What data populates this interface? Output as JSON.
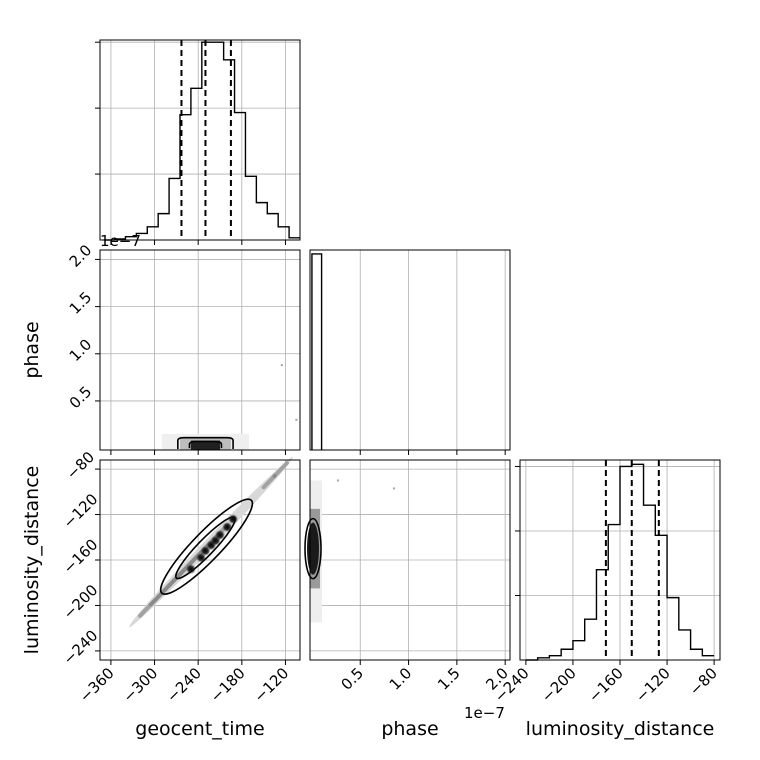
{
  "chart_data": {
    "type": "corner",
    "parameters": [
      "geocent_time",
      "phase",
      "luminosity_distance"
    ],
    "offset_label": "1e−7",
    "grid": true,
    "quantile_lines": "dashed",
    "panels": [
      {
        "id": "hist-geocent_time",
        "type": "histogram",
        "xlim": [
          -375,
          -100
        ],
        "bin_edges": [
          -370,
          -355,
          -340,
          -325,
          -310,
          -295,
          -280,
          -265,
          -250,
          -235,
          -220,
          -205,
          -190,
          -175,
          -160,
          -145,
          -130,
          -115,
          -100
        ],
        "counts": [
          0,
          0.5,
          1.5,
          3,
          6,
          12,
          28,
          57,
          69,
          90,
          90,
          82,
          58,
          29,
          17,
          12,
          6,
          1
        ],
        "ylim": [
          0,
          91
        ],
        "y_ticks": [
          30,
          60,
          90
        ],
        "quantiles": [
          -263,
          -230,
          -195
        ]
      },
      {
        "id": "hist-phase",
        "type": "histogram",
        "xlim": [
          -0.02,
          2.05
        ],
        "bin_edges": [
          0,
          0.1
        ],
        "counts": [
          1
        ],
        "ylim": [
          0,
          1.02
        ],
        "y_ticks": [],
        "quantiles": []
      },
      {
        "id": "hist-luminosity_distance",
        "type": "histogram",
        "xlim": [
          -245,
          -75
        ],
        "bin_edges": [
          -240,
          -230,
          -220,
          -210,
          -200,
          -190,
          -180,
          -170,
          -160,
          -150,
          -140,
          -130,
          -120,
          -110,
          -100,
          -90,
          -80
        ],
        "counts": [
          0,
          1,
          2,
          5,
          9,
          19,
          42,
          63,
          90,
          91,
          72,
          58,
          29,
          14,
          5,
          2
        ],
        "ylim": [
          0,
          93
        ],
        "y_ticks": [
          30,
          60,
          90
        ],
        "quantiles": [
          -172,
          -150,
          -127
        ]
      },
      {
        "id": "scatter-phase-vs-geocent_time",
        "type": "density",
        "x": "geocent_time",
        "y": "phase",
        "xlim": [
          -375,
          -100
        ],
        "ylim": [
          -0.02,
          2.1
        ],
        "x_ticks": [
          -360,
          -300,
          -240,
          -180,
          -120
        ],
        "y_ticks": [
          0.5,
          1.0,
          1.5,
          2.0
        ],
        "y_tick_labels": [
          "0.5",
          "1.0",
          "1.5",
          "2.0"
        ],
        "center": [
          -230,
          0.05
        ],
        "contours": [
          {
            "x0": -268,
            "x1": -192,
            "y0": -0.01,
            "y1": 0.11
          },
          {
            "x0": -252,
            "x1": -208,
            "y0": 0.0,
            "y1": 0.07
          }
        ],
        "outliers": [
          [
            -125,
            0.88
          ],
          [
            -105,
            0.3
          ]
        ]
      },
      {
        "id": "scatter-ld-vs-geocent_time",
        "type": "density",
        "x": "geocent_time",
        "y": "luminosity_distance",
        "xlim": [
          -375,
          -100
        ],
        "ylim": [
          -248,
          -72
        ],
        "x_ticks": [
          -360,
          -300,
          -240,
          -180,
          -120
        ],
        "y_ticks": [
          -240,
          -200,
          -160,
          -120,
          -80
        ],
        "slope": 0.665,
        "intercept": 3.7,
        "band_x": [
          -335,
          -110
        ],
        "contour_outer": {
          "x0": -290,
          "x1": -167,
          "width": 7
        },
        "contour_inner": {
          "x0": -270,
          "x1": -190,
          "width": 4
        },
        "blobs": [
          [
            -250,
            -168
          ],
          [
            -236,
            -158
          ],
          [
            -222,
            -147
          ],
          [
            -210,
            -138
          ],
          [
            -200,
            -131
          ],
          [
            -230,
            -152
          ],
          [
            -216,
            -143
          ],
          [
            -192,
            -124
          ]
        ]
      },
      {
        "id": "scatter-ld-vs-phase",
        "type": "density",
        "x": "phase",
        "y": "luminosity_distance",
        "xlim": [
          -0.02,
          2.05
        ],
        "ylim": [
          -248,
          -72
        ],
        "x_ticks": [
          0.5,
          1.0,
          1.5,
          2.0
        ],
        "x_tick_labels": [
          "0.5",
          "1.0",
          "1.5",
          "2.0"
        ],
        "y_ticks": [],
        "center": [
          0.02,
          -150
        ],
        "outliers": [
          [
            0.27,
            -90
          ],
          [
            0.85,
            -97
          ]
        ]
      }
    ]
  }
}
